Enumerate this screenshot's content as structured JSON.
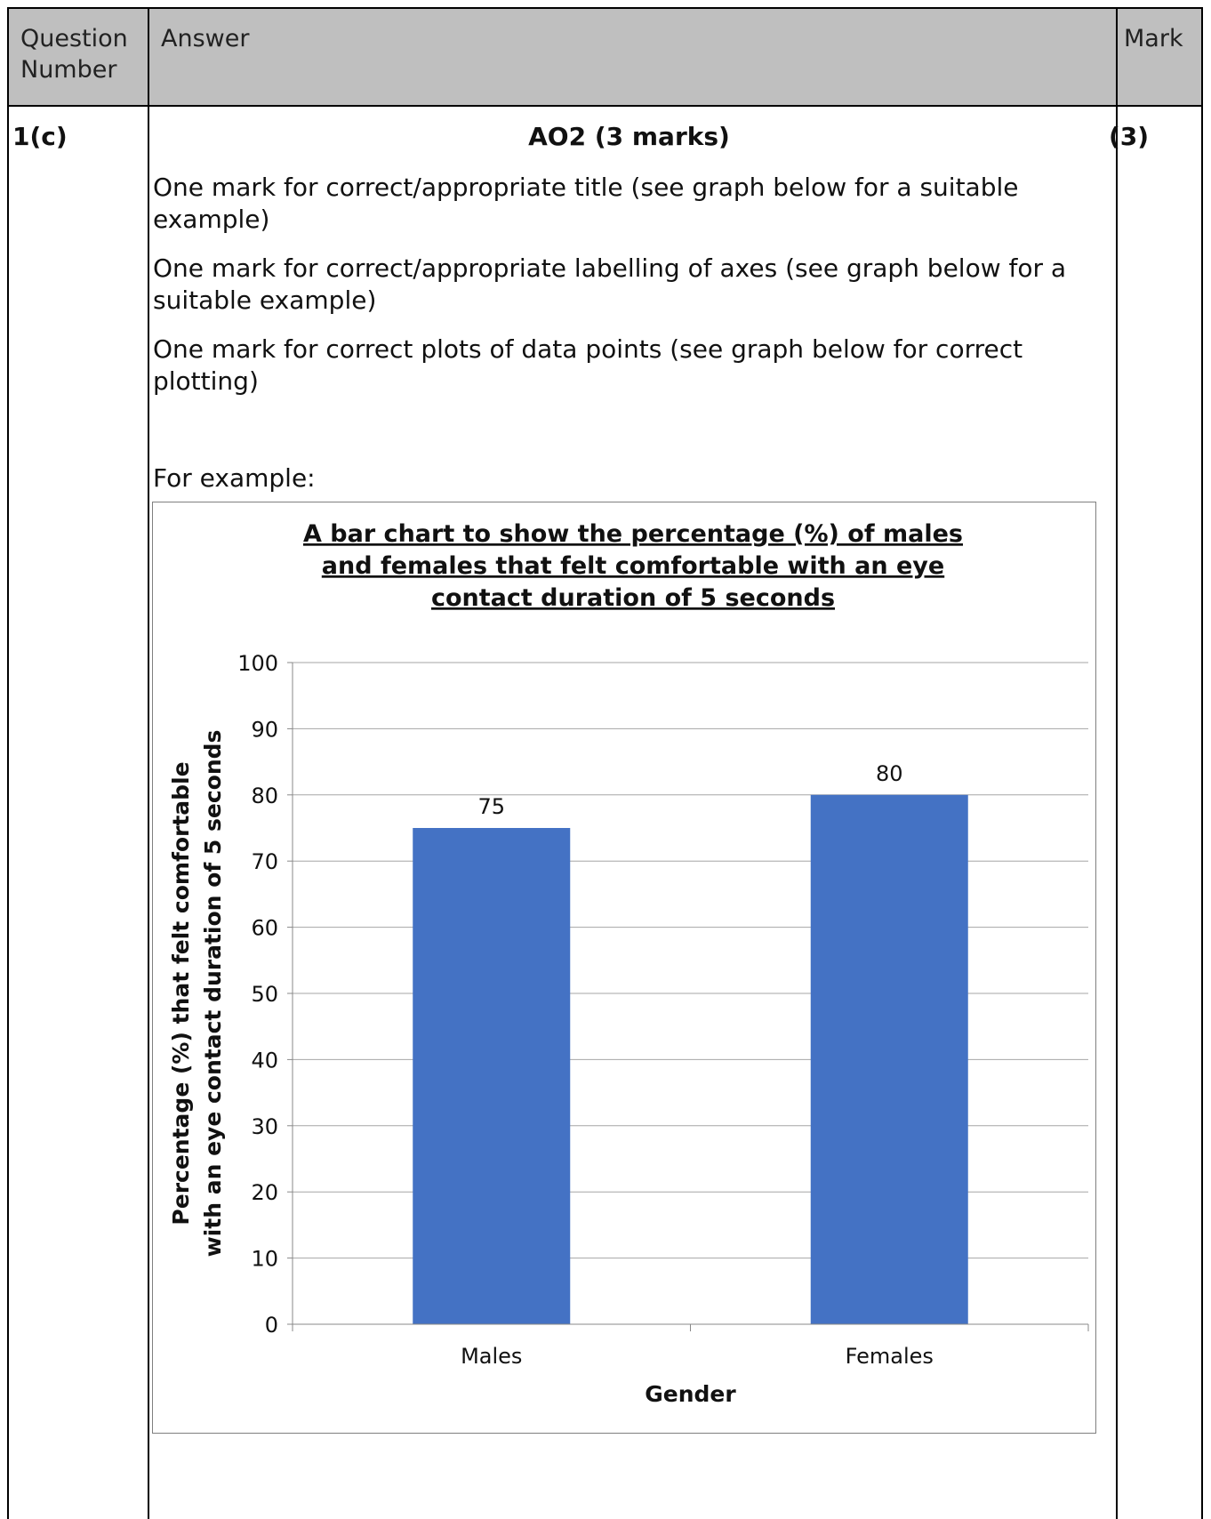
{
  "header": {
    "question_label": "Question Number",
    "answer_label": "Answer",
    "mark_label": "Mark"
  },
  "row": {
    "question_number": "1(c)",
    "heading": "AO2 (3 marks)",
    "mark": "(3)",
    "paragraphs": [
      "One mark for correct/appropriate title (see graph below for a suitable example)",
      "One mark for correct/appropriate labelling of axes (see graph below for a suitable example)",
      "One mark for correct plots of data points (see graph below for correct plotting)"
    ],
    "example_label": "For example:"
  },
  "colors": {
    "bar": "#4472c4",
    "gridline": "#a6a6a6",
    "header_bg": "#bfbfbf"
  },
  "chart_data": {
    "type": "bar",
    "title_lines": [
      "A bar chart to show the percentage (%) of males",
      "and females that felt comfortable with an eye",
      "contact duration of 5 seconds"
    ],
    "ylabel_lines": [
      "Percentage (%) that felt comfortable",
      "with an eye contact duration of 5 seconds"
    ],
    "xlabel": "Gender",
    "categories": [
      "Males",
      "Females"
    ],
    "values": [
      75,
      80
    ],
    "data_labels": [
      "75",
      "80"
    ],
    "ylim": [
      0,
      100
    ],
    "yticks": [
      0,
      10,
      20,
      30,
      40,
      50,
      60,
      70,
      80,
      90,
      100
    ],
    "grid": true,
    "legend": "none"
  }
}
